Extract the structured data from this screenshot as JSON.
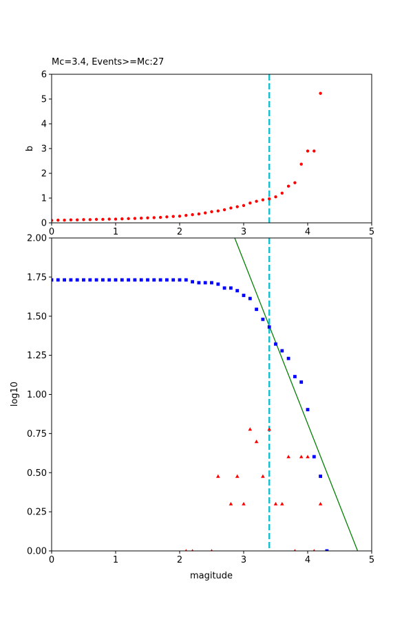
{
  "chart_data": [
    {
      "id": "top",
      "type": "scatter",
      "title": "Mc=3.4, Events>=Mc:27",
      "xlabel": "",
      "ylabel": "b",
      "xlim": [
        0,
        5
      ],
      "ylim": [
        0,
        6
      ],
      "xticks": [
        0,
        1,
        2,
        3,
        4,
        5
      ],
      "yticks": [
        0,
        1,
        2,
        3,
        4,
        5,
        6
      ],
      "grid": false,
      "vline": {
        "x": 3.4,
        "color": "#17becf",
        "style": "dashed"
      },
      "series": [
        {
          "marker": "circle",
          "color": "#ff0000",
          "x": [
            0.0,
            0.1,
            0.2,
            0.3,
            0.4,
            0.5,
            0.6,
            0.7,
            0.8,
            0.9,
            1.0,
            1.1,
            1.2,
            1.3,
            1.4,
            1.5,
            1.6,
            1.7,
            1.8,
            1.9,
            2.0,
            2.1,
            2.2,
            2.3,
            2.4,
            2.5,
            2.6,
            2.7,
            2.8,
            2.9,
            3.0,
            3.1,
            3.2,
            3.3,
            3.4,
            3.5,
            3.6,
            3.7,
            3.8,
            3.9,
            4.0,
            4.1,
            4.2
          ],
          "y": [
            0.1,
            0.11,
            0.11,
            0.12,
            0.12,
            0.13,
            0.13,
            0.14,
            0.14,
            0.15,
            0.15,
            0.16,
            0.17,
            0.18,
            0.19,
            0.2,
            0.21,
            0.22,
            0.24,
            0.26,
            0.27,
            0.3,
            0.33,
            0.36,
            0.4,
            0.45,
            0.48,
            0.53,
            0.6,
            0.65,
            0.7,
            0.8,
            0.87,
            0.93,
            0.97,
            1.05,
            1.2,
            1.48,
            1.62,
            2.37,
            2.9,
            2.9,
            5.23
          ]
        }
      ]
    },
    {
      "id": "bottom",
      "type": "scatter",
      "title": "",
      "xlabel": "magitude",
      "ylabel": "log10",
      "xlim": [
        0,
        5
      ],
      "ylim": [
        0,
        2
      ],
      "xticks": [
        0,
        1,
        2,
        3,
        4,
        5
      ],
      "yticks": [
        0.0,
        0.25,
        0.5,
        0.75,
        1.0,
        1.25,
        1.5,
        1.75,
        2.0
      ],
      "ytick_labels": [
        "0.00",
        "0.25",
        "0.50",
        "0.75",
        "1.00",
        "1.25",
        "1.50",
        "1.75",
        "2.00"
      ],
      "grid": false,
      "vline": {
        "x": 3.4,
        "color": "#17becf",
        "style": "dashed"
      },
      "fit_line": {
        "color": "#008000",
        "x": [
          2.86,
          4.78
        ],
        "y": [
          2.0,
          0.0
        ]
      },
      "series": [
        {
          "marker": "square",
          "color": "#0000ff",
          "x": [
            0.0,
            0.1,
            0.2,
            0.3,
            0.4,
            0.5,
            0.6,
            0.7,
            0.8,
            0.9,
            1.0,
            1.1,
            1.2,
            1.3,
            1.4,
            1.5,
            1.6,
            1.7,
            1.8,
            1.9,
            2.0,
            2.1,
            2.2,
            2.3,
            2.4,
            2.5,
            2.6,
            2.7,
            2.8,
            2.9,
            3.0,
            3.1,
            3.2,
            3.3,
            3.4,
            3.5,
            3.6,
            3.7,
            3.8,
            3.9,
            4.0,
            4.1,
            4.2,
            4.3
          ],
          "y": [
            1.732,
            1.732,
            1.732,
            1.732,
            1.732,
            1.732,
            1.732,
            1.732,
            1.732,
            1.732,
            1.732,
            1.732,
            1.732,
            1.732,
            1.732,
            1.732,
            1.732,
            1.732,
            1.732,
            1.732,
            1.732,
            1.732,
            1.72,
            1.714,
            1.714,
            1.714,
            1.705,
            1.68,
            1.68,
            1.663,
            1.633,
            1.613,
            1.544,
            1.48,
            1.431,
            1.322,
            1.279,
            1.23,
            1.114,
            1.079,
            0.903,
            0.602,
            0.477,
            0.0
          ]
        },
        {
          "marker": "triangle",
          "color": "#ff0000",
          "x": [
            2.1,
            2.2,
            2.5,
            2.6,
            2.8,
            2.9,
            3.0,
            3.1,
            3.2,
            3.3,
            3.4,
            3.5,
            3.6,
            3.7,
            3.8,
            3.9,
            4.0,
            4.1,
            4.2
          ],
          "y": [
            0.0,
            0.0,
            0.0,
            0.477,
            0.301,
            0.477,
            0.301,
            0.778,
            0.699,
            0.477,
            0.778,
            0.301,
            0.301,
            0.602,
            0.0,
            0.602,
            0.602,
            0.0,
            0.301
          ]
        }
      ]
    }
  ]
}
